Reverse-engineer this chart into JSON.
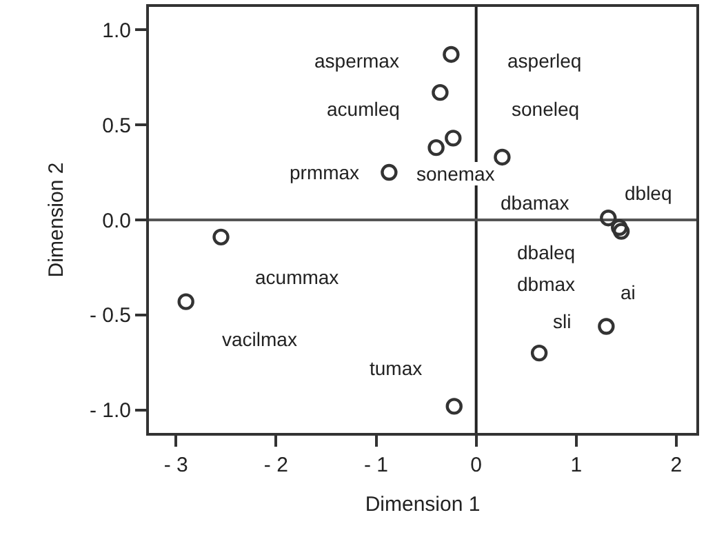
{
  "chart_data": {
    "type": "scatter",
    "xlabel": "Dimension 1",
    "ylabel": "Dimension 2",
    "x": [
      -0.25,
      -0.36,
      -0.23,
      -0.4,
      -0.87,
      0.26,
      1.32,
      1.43,
      1.45,
      1.3,
      0.63,
      -0.22,
      -2.55,
      -2.9
    ],
    "series": [
      {
        "color": "#333333",
        "values": [
          0.87,
          0.67,
          0.43,
          0.38,
          0.25,
          0.33,
          0.01,
          -0.04,
          -0.06,
          -0.56,
          -0.7,
          -0.98,
          -0.09,
          -0.43
        ]
      }
    ],
    "marker": "circle",
    "grid": false,
    "xlim": [
      -3.27,
      2.2
    ],
    "ylim": [
      -1.12,
      1.12
    ],
    "xticks": [
      {
        "value": -3,
        "label": "- 3"
      },
      {
        "value": -2,
        "label": "- 2"
      },
      {
        "value": -1,
        "label": "- 1"
      },
      0,
      1,
      2
    ],
    "yticks": [
      {
        "value": -1,
        "label": "- 1.0"
      },
      {
        "value": -0.5,
        "label": "- 0.5"
      },
      {
        "value": 0,
        "label": "0.0"
      },
      {
        "value": 0.5,
        "label": "0.5"
      },
      {
        "value": 1,
        "label": "1.0"
      }
    ],
    "ref_lines": [
      {
        "axis": "x",
        "value": 0,
        "color": "#222222"
      },
      {
        "axis": "y",
        "value": 0,
        "color": "#555555"
      }
    ],
    "annotations": [
      "aspermax",
      "asperleq",
      "acumleq",
      "soneleq",
      "prmmax",
      "sonemax",
      "dbamax",
      "dbleq",
      "dbaleq",
      "dbmax",
      "ai",
      "sli",
      "acummax",
      "vacilmax",
      "tumax"
    ]
  }
}
